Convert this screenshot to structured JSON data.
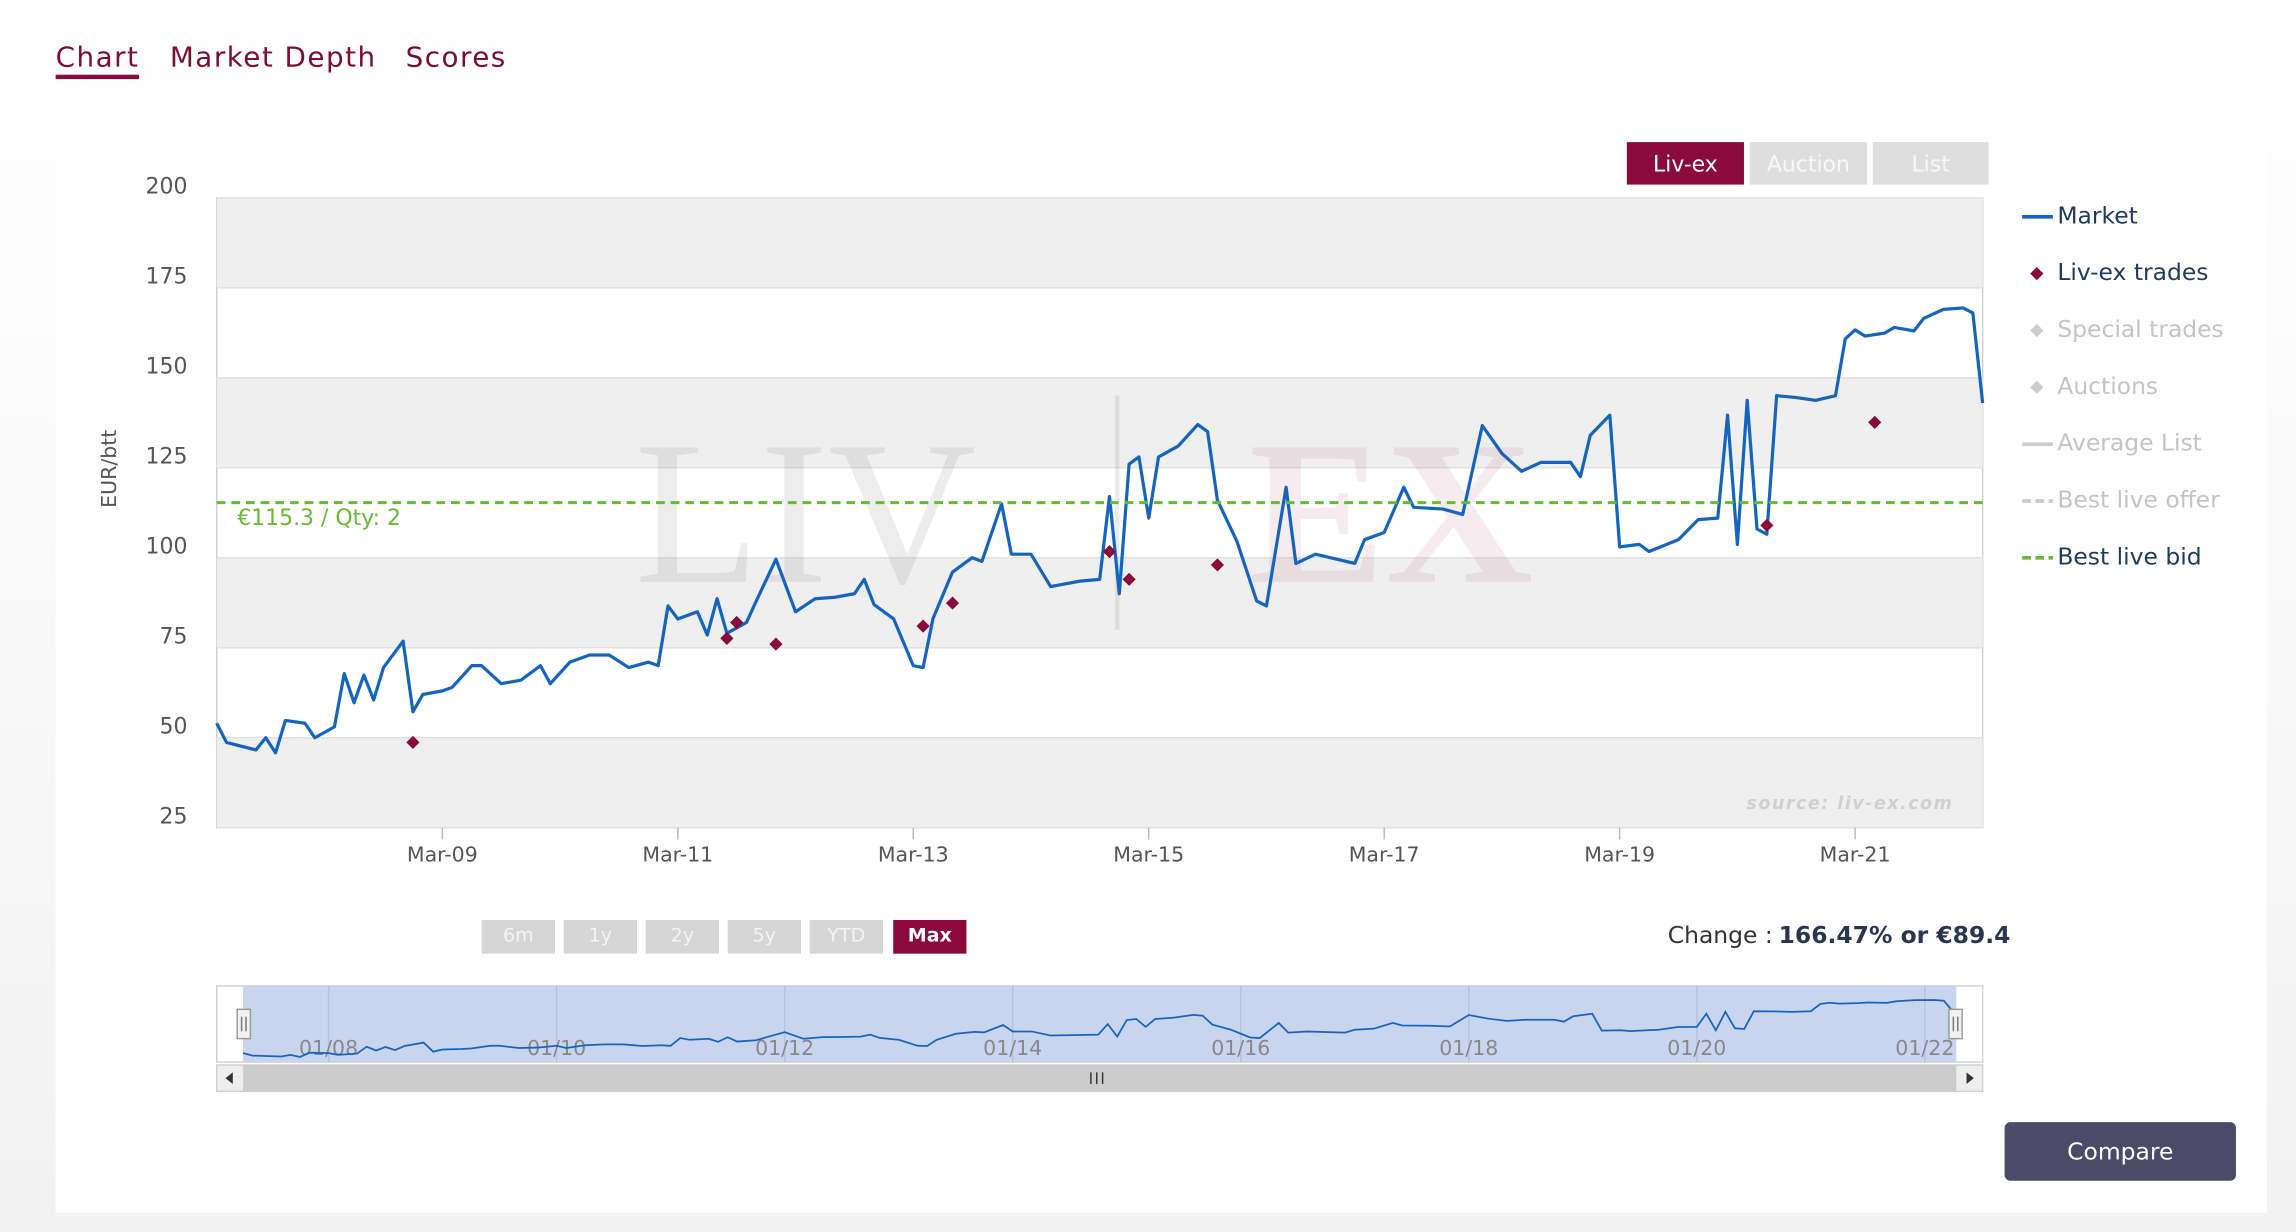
{
  "tabs": [
    "Chart",
    "Market Depth",
    "Scores"
  ],
  "active_tab": 0,
  "source_buttons": [
    "Liv-ex",
    "Auction",
    "List"
  ],
  "active_source": 0,
  "range_buttons": [
    "6m",
    "1y",
    "2y",
    "5y",
    "YTD",
    "Max"
  ],
  "active_range": 5,
  "change": {
    "label": "Change :",
    "value": "166.47% or €89.4"
  },
  "compare": "Compare",
  "chart_data": {
    "type": "line",
    "y_label": "EUR/btt",
    "watermark": [
      "LIV",
      "EX"
    ],
    "source": "source: liv-ex.com",
    "xlim": [
      "2007-04",
      "2022-04"
    ],
    "xticks": [
      {
        "value": "2009-03",
        "label": "Mar-09"
      },
      {
        "value": "2011-03",
        "label": "Mar-11"
      },
      {
        "value": "2013-03",
        "label": "Mar-13"
      },
      {
        "value": "2015-03",
        "label": "Mar-15"
      },
      {
        "value": "2017-03",
        "label": "Mar-17"
      },
      {
        "value": "2019-03",
        "label": "Mar-19"
      },
      {
        "value": "2021-03",
        "label": "Mar-21"
      }
    ],
    "ylim": [
      25,
      200
    ],
    "yticks": [
      25,
      50,
      75,
      100,
      125,
      150,
      175,
      200
    ],
    "bands": true,
    "series": [
      {
        "name": "Market",
        "type": "line",
        "color": "#1565c0",
        "x": [
          "2007-04",
          "2007-05",
          "2007-08",
          "2007-09",
          "2007-10",
          "2007-11",
          "2008-01",
          "2008-02",
          "2008-04",
          "2008-05",
          "2008-06",
          "2008-07",
          "2008-08",
          "2008-09",
          "2008-11",
          "2008-12",
          "2009-01",
          "2009-03",
          "2009-04",
          "2009-06",
          "2009-07",
          "2009-09",
          "2009-11",
          "2010-01",
          "2010-02",
          "2010-04",
          "2010-06",
          "2010-08",
          "2010-10",
          "2010-12",
          "2011-01",
          "2011-02",
          "2011-03",
          "2011-05",
          "2011-06",
          "2011-07",
          "2011-08",
          "2011-10",
          "2011-11",
          "2012-01",
          "2012-03",
          "2012-05",
          "2012-07",
          "2012-09",
          "2012-10",
          "2012-11",
          "2013-01",
          "2013-03",
          "2013-04",
          "2013-05",
          "2013-07",
          "2013-09",
          "2013-10",
          "2013-12",
          "2014-01",
          "2014-03",
          "2014-05",
          "2014-08",
          "2014-10",
          "2014-11",
          "2014-12",
          "2015-01",
          "2015-02",
          "2015-03",
          "2015-04",
          "2015-06",
          "2015-08",
          "2015-09",
          "2015-10",
          "2015-12",
          "2016-02",
          "2016-03",
          "2016-05",
          "2016-06",
          "2016-08",
          "2016-12",
          "2017-01",
          "2017-03",
          "2017-05",
          "2017-06",
          "2017-09",
          "2017-11",
          "2018-01",
          "2018-03",
          "2018-05",
          "2018-07",
          "2018-10",
          "2018-11",
          "2018-12",
          "2019-02",
          "2019-03",
          "2019-05",
          "2019-06",
          "2019-09",
          "2019-11",
          "2020-01",
          "2020-02",
          "2020-03",
          "2020-04",
          "2020-05",
          "2020-06",
          "2020-07",
          "2020-09",
          "2020-11",
          "2021-01",
          "2021-02",
          "2021-03",
          "2021-04",
          "2021-06",
          "2021-07",
          "2021-09",
          "2021-10",
          "2021-12",
          "2022-02",
          "2022-03",
          "2022-04"
        ],
        "values": [
          54,
          48.7,
          46.6,
          50,
          45.8,
          54.8,
          54,
          50,
          53,
          67.8,
          59.7,
          67.4,
          60.5,
          69.5,
          76.8,
          57.2,
          62,
          63,
          64,
          70,
          70,
          65,
          66,
          70,
          65,
          71,
          73,
          73,
          69.5,
          71,
          70,
          86.6,
          83,
          85,
          78.5,
          88.6,
          79,
          82,
          88,
          99.6,
          85,
          88.6,
          89,
          90,
          94,
          87,
          83,
          70,
          69.5,
          83,
          96,
          100,
          99,
          115,
          101,
          101,
          92,
          93.5,
          94,
          117,
          90,
          126,
          128,
          111,
          128,
          131,
          137,
          135,
          116,
          104.5,
          88,
          86.6,
          119.6,
          98.4,
          101,
          98.4,
          105,
          107,
          119.6,
          114,
          113.5,
          112,
          136.7,
          129,
          124,
          126.5,
          126.5,
          122.5,
          134,
          139.6,
          103,
          103.7,
          101.7,
          105,
          110.6,
          111,
          139.6,
          103.7,
          143.7,
          108,
          106.5,
          145,
          144.5,
          143.7,
          145,
          160.8,
          163.3,
          161.6,
          162.4,
          164,
          163,
          166.5,
          169,
          169.4,
          168,
          143
        ]
      },
      {
        "name": "Liv-ex trades",
        "type": "scatter",
        "color": "#8b0a3c",
        "x": [
          "2008-12",
          "2011-08",
          "2011-09",
          "2012-01",
          "2013-04",
          "2013-07",
          "2014-11",
          "2015-01",
          "2015-10",
          "2020-06",
          "2021-05"
        ],
        "values": [
          48.7,
          77.6,
          82,
          76,
          81,
          87.4,
          101.7,
          94,
          98,
          109,
          137.6
        ]
      },
      {
        "name": "Special trades",
        "type": "scatter",
        "color": "#cccccc"
      },
      {
        "name": "Auctions",
        "type": "scatter",
        "color": "#cccccc"
      },
      {
        "name": "Average List",
        "type": "line",
        "color": "#cccccc"
      },
      {
        "name": "Best live offer",
        "type": "hline",
        "color": "#1565c0"
      },
      {
        "name": "Best live bid",
        "type": "hline",
        "color": "#66bb33",
        "values": [
          115.3
        ],
        "value_labels": [
          "€115.3 / Qty: 2"
        ]
      }
    ],
    "navigator": {
      "xticks": [
        {
          "value": "2008-01",
          "label": "01/08"
        },
        {
          "value": "2010-01",
          "label": "01/10"
        },
        {
          "value": "2012-01",
          "label": "01/12"
        },
        {
          "value": "2014-01",
          "label": "01/14"
        },
        {
          "value": "2016-01",
          "label": "01/16"
        },
        {
          "value": "2018-01",
          "label": "01/18"
        },
        {
          "value": "2020-01",
          "label": "01/20"
        },
        {
          "value": "2022-01",
          "label": "01/22"
        }
      ]
    }
  }
}
